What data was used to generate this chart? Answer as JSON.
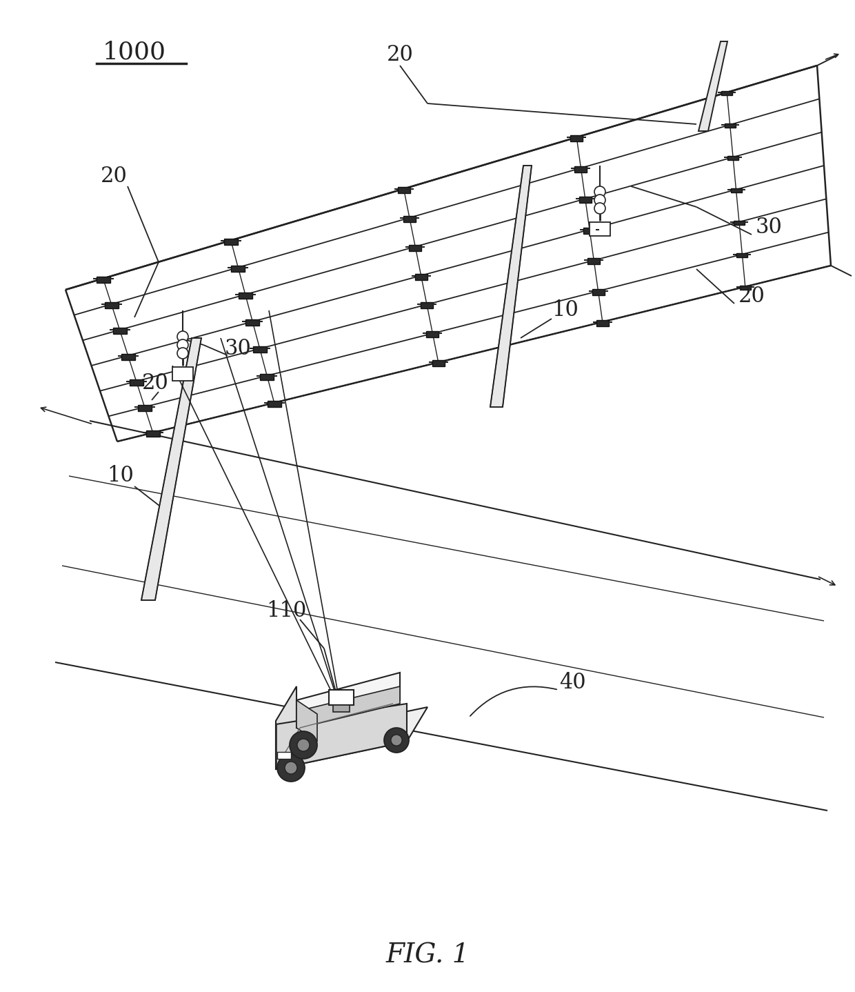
{
  "fig_label": "FIG. 1",
  "ref_1000": "1000",
  "ref_10a": "10",
  "ref_10b": "10",
  "ref_20a": "20",
  "ref_20b": "20",
  "ref_20c": "20",
  "ref_20d": "20",
  "ref_30a": "30",
  "ref_30b": "30",
  "ref_40": "40",
  "ref_110": "110",
  "bg_color": "#ffffff",
  "lc": "#222222",
  "fig_width": 12.4,
  "fig_height": 14.38,
  "dpi": 100
}
